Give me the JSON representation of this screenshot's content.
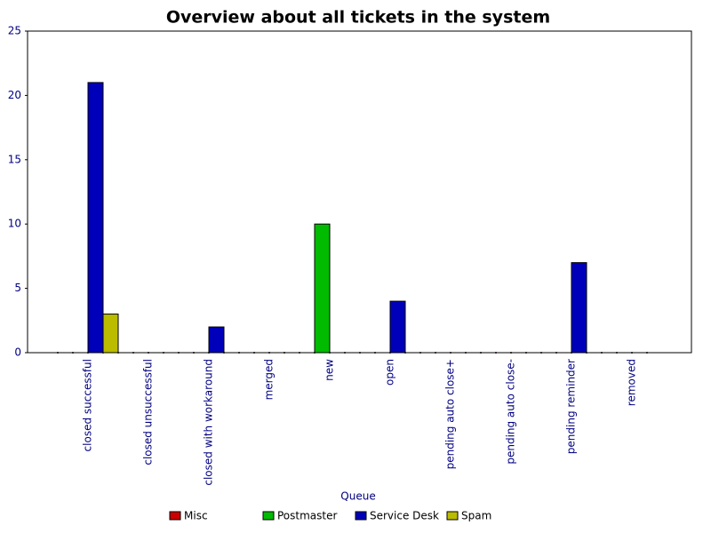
{
  "chart_data": {
    "type": "bar",
    "title": "Overview about all tickets in the system",
    "x_label": "Queue",
    "categories": [
      "closed successful",
      "closed unsuccessful",
      "closed with workaround",
      "merged",
      "new",
      "open",
      "pending auto close+",
      "pending auto close-",
      "pending reminder",
      "removed"
    ],
    "series": [
      {
        "name": "Misc",
        "color": "#cc0000",
        "values": [
          0,
          0,
          0,
          0,
          0,
          0,
          0,
          0,
          0,
          0
        ]
      },
      {
        "name": "Postmaster",
        "color": "#00bb00",
        "values": [
          0,
          0,
          0,
          0,
          10,
          0,
          0,
          0,
          0,
          0
        ]
      },
      {
        "name": "Service Desk",
        "color": "#0000bb",
        "values": [
          21,
          0,
          2,
          0,
          0,
          4,
          0,
          0,
          7,
          0
        ]
      },
      {
        "name": "Spam",
        "color": "#bbbb00",
        "values": [
          3,
          0,
          0,
          0,
          0,
          0,
          0,
          0,
          0,
          0
        ]
      }
    ],
    "ylim": [
      0,
      25
    ],
    "yticks": [
      0,
      5,
      10,
      15,
      20,
      25
    ],
    "grid": false
  }
}
